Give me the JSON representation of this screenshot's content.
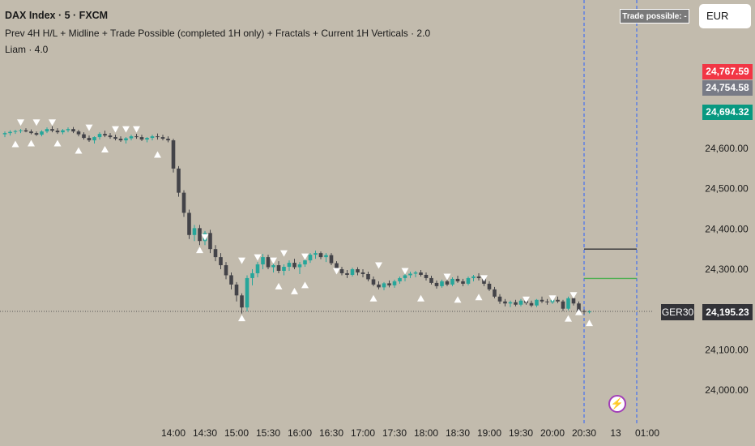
{
  "header": {
    "title": "DAX Index · 5 · FXCM",
    "indicator_1": "Prev 4H H/L + Midline + Trade Possible (completed 1H only) + Fractals + Current 1H Verticals · 2.0",
    "indicator_2": "Liam · 4.0"
  },
  "trade_badge": "Trade possible: -",
  "currency": "EUR",
  "price_tags": {
    "red": "24,767.59",
    "gray": "24,754.58",
    "green": "24,694.32",
    "last": "24,195.23",
    "symbol": "GER30"
  },
  "colors": {
    "bg": "#c2bbad",
    "up": "#26a69a",
    "down": "#434348",
    "red": "#f23645",
    "green": "#089981",
    "gray": "#787b86",
    "vline": "#2962ff"
  },
  "chart_data": {
    "type": "candlestick",
    "y_ticks": [
      24600,
      24500,
      24400,
      24300,
      24200,
      24100,
      24000
    ],
    "y_tick_labels": [
      "24,600.00",
      "24,500.00",
      "24,400.00",
      "24,300.00",
      "24,200.00",
      "24,100.00",
      "24,000.00"
    ],
    "x_tick_labels": [
      "14:00",
      "14:30",
      "15:00",
      "15:30",
      "16:00",
      "16:30",
      "17:00",
      "17:30",
      "18:00",
      "18:30",
      "19:00",
      "19:30",
      "20:00",
      "20:30",
      "13",
      "01:00"
    ],
    "x_range": [
      0,
      153
    ],
    "last_price": 24195.23,
    "candles": [
      [
        24635,
        24642,
        24628,
        24638
      ],
      [
        24638,
        24645,
        24632,
        24641
      ],
      [
        24641,
        24646,
        24636,
        24643
      ],
      [
        24643,
        24648,
        24638,
        24645
      ],
      [
        24645,
        24650,
        24640,
        24642
      ],
      [
        24642,
        24647,
        24635,
        24638
      ],
      [
        24638,
        24642,
        24631,
        24634
      ],
      [
        24634,
        24645,
        24630,
        24642
      ],
      [
        24642,
        24652,
        24638,
        24648
      ],
      [
        24648,
        24655,
        24640,
        24644
      ],
      [
        24644,
        24650,
        24636,
        24640
      ],
      [
        24640,
        24648,
        24635,
        24645
      ],
      [
        24645,
        24652,
        24640,
        24648
      ],
      [
        24648,
        24653,
        24638,
        24642
      ],
      [
        24642,
        24646,
        24630,
        24635
      ],
      [
        24635,
        24640,
        24622,
        24626
      ],
      [
        24626,
        24632,
        24616,
        24620
      ],
      [
        24620,
        24630,
        24612,
        24628
      ],
      [
        24628,
        24640,
        24622,
        24636
      ],
      [
        24636,
        24644,
        24628,
        24632
      ],
      [
        24632,
        24638,
        24624,
        24628
      ],
      [
        24628,
        24634,
        24620,
        24624
      ],
      [
        24624,
        24630,
        24616,
        24620
      ],
      [
        24620,
        24628,
        24612,
        24625
      ],
      [
        24625,
        24634,
        24620,
        24630
      ],
      [
        24630,
        24636,
        24624,
        24628
      ],
      [
        24628,
        24634,
        24618,
        24622
      ],
      [
        24622,
        24628,
        24615,
        24626
      ],
      [
        24626,
        24634,
        24620,
        24630
      ],
      [
        24630,
        24637,
        24622,
        24628
      ],
      [
        24628,
        24634,
        24620,
        24624
      ],
      [
        24624,
        24630,
        24615,
        24620
      ],
      [
        24620,
        24624,
        24540,
        24550
      ],
      [
        24550,
        24556,
        24480,
        24490
      ],
      [
        24490,
        24496,
        24430,
        24440
      ],
      [
        24440,
        24448,
        24375,
        24385
      ],
      [
        24385,
        24410,
        24370,
        24402
      ],
      [
        24402,
        24410,
        24360,
        24370
      ],
      [
        24370,
        24395,
        24360,
        24390
      ],
      [
        24390,
        24398,
        24340,
        24350
      ],
      [
        24350,
        24360,
        24320,
        24330
      ],
      [
        24330,
        24340,
        24300,
        24310
      ],
      [
        24310,
        24318,
        24275,
        24285
      ],
      [
        24285,
        24292,
        24250,
        24262
      ],
      [
        24262,
        24268,
        24220,
        24235
      ],
      [
        24235,
        24240,
        24190,
        24205
      ],
      [
        24205,
        24285,
        24195,
        24278
      ],
      [
        24278,
        24300,
        24260,
        24290
      ],
      [
        24290,
        24318,
        24280,
        24312
      ],
      [
        24312,
        24338,
        24300,
        24330
      ],
      [
        24330,
        24336,
        24300,
        24305
      ],
      [
        24305,
        24318,
        24292,
        24310
      ],
      [
        24310,
        24320,
        24290,
        24296
      ],
      [
        24296,
        24312,
        24285,
        24306
      ],
      [
        24306,
        24322,
        24296,
        24316
      ],
      [
        24316,
        24326,
        24300,
        24305
      ],
      [
        24305,
        24318,
        24288,
        24312
      ],
      [
        24312,
        24328,
        24306,
        24322
      ],
      [
        24322,
        24340,
        24316,
        24336
      ],
      [
        24336,
        24346,
        24326,
        24340
      ],
      [
        24340,
        24344,
        24325,
        24330
      ],
      [
        24330,
        24340,
        24318,
        24335
      ],
      [
        24335,
        24340,
        24310,
        24315
      ],
      [
        24315,
        24320,
        24295,
        24300
      ],
      [
        24300,
        24306,
        24285,
        24290
      ],
      [
        24290,
        24298,
        24278,
        24286
      ],
      [
        24286,
        24304,
        24282,
        24300
      ],
      [
        24300,
        24305,
        24285,
        24292
      ],
      [
        24292,
        24300,
        24280,
        24288
      ],
      [
        24288,
        24294,
        24270,
        24275
      ],
      [
        24275,
        24282,
        24258,
        24262
      ],
      [
        24262,
        24270,
        24250,
        24255
      ],
      [
        24255,
        24268,
        24248,
        24265
      ],
      [
        24265,
        24272,
        24255,
        24260
      ],
      [
        24260,
        24274,
        24254,
        24270
      ],
      [
        24270,
        24282,
        24264,
        24278
      ],
      [
        24278,
        24290,
        24270,
        24285
      ],
      [
        24285,
        24294,
        24278,
        24289
      ],
      [
        24289,
        24296,
        24280,
        24292
      ],
      [
        24292,
        24298,
        24282,
        24286
      ],
      [
        24286,
        24292,
        24272,
        24278
      ],
      [
        24278,
        24284,
        24262,
        24266
      ],
      [
        24266,
        24272,
        24252,
        24258
      ],
      [
        24258,
        24274,
        24254,
        24270
      ],
      [
        24270,
        24278,
        24258,
        24262
      ],
      [
        24262,
        24280,
        24258,
        24276
      ],
      [
        24276,
        24284,
        24266,
        24270
      ],
      [
        24270,
        24276,
        24258,
        24264
      ],
      [
        24264,
        24282,
        24260,
        24278
      ],
      [
        24278,
        24286,
        24270,
        24282
      ],
      [
        24282,
        24290,
        24272,
        24278
      ],
      [
        24278,
        24284,
        24258,
        24264
      ],
      [
        24264,
        24270,
        24246,
        24250
      ],
      [
        24250,
        24256,
        24228,
        24232
      ],
      [
        24232,
        24238,
        24214,
        24220
      ],
      [
        24220,
        24226,
        24208,
        24215
      ],
      [
        24215,
        24222,
        24206,
        24218
      ],
      [
        24218,
        24224,
        24208,
        24212
      ],
      [
        24212,
        24226,
        24208,
        24222
      ],
      [
        24222,
        24228,
        24212,
        24216
      ],
      [
        24216,
        24222,
        24206,
        24210
      ],
      [
        24210,
        24226,
        24206,
        24224
      ],
      [
        24224,
        24232,
        24216,
        24220
      ],
      [
        24220,
        24226,
        24212,
        24218
      ],
      [
        24218,
        24228,
        24214,
        24224
      ],
      [
        24224,
        24232,
        24216,
        24220
      ],
      [
        24220,
        24224,
        24196,
        24202
      ],
      [
        24202,
        24232,
        24198,
        24228
      ],
      [
        24228,
        24236,
        24210,
        24215
      ],
      [
        24215,
        24220,
        24190,
        24196
      ],
      [
        24196,
        24200,
        24188,
        24194
      ],
      [
        24194,
        24198,
        24190,
        24195
      ]
    ],
    "fractals_up": [
      [
        3,
        24665
      ],
      [
        6,
        24665
      ],
      [
        9,
        24665
      ],
      [
        16,
        24652
      ],
      [
        21,
        24648
      ],
      [
        23,
        24648
      ],
      [
        25,
        24648
      ],
      [
        38,
        24380
      ],
      [
        45,
        24322
      ],
      [
        48,
        24330
      ],
      [
        51,
        24322
      ],
      [
        53,
        24340
      ],
      [
        57,
        24332
      ],
      [
        63,
        24296
      ],
      [
        71,
        24310
      ],
      [
        76,
        24296
      ],
      [
        84,
        24282
      ],
      [
        91,
        24278
      ],
      [
        99,
        24225
      ],
      [
        104,
        24228
      ],
      [
        108,
        24236
      ]
    ],
    "fractals_down": [
      [
        2,
        24610
      ],
      [
        5,
        24612
      ],
      [
        10,
        24612
      ],
      [
        14,
        24594
      ],
      [
        19,
        24597
      ],
      [
        29,
        24584
      ],
      [
        37,
        24347
      ],
      [
        45,
        24178
      ],
      [
        52,
        24257
      ],
      [
        55,
        24245
      ],
      [
        57,
        24260
      ],
      [
        70,
        24227
      ],
      [
        79,
        24227
      ],
      [
        86,
        24224
      ],
      [
        90,
        24230
      ],
      [
        107,
        24177
      ],
      [
        109,
        24193
      ],
      [
        111,
        24166
      ]
    ],
    "h_lines": [
      {
        "name": "prev-4h-high",
        "x0": 110,
        "x1": 120,
        "y": 24350,
        "color": "#333338"
      },
      {
        "name": "midline",
        "x0": 110,
        "x1": 120,
        "y": 24277,
        "color": "#4caf50"
      }
    ],
    "v_lines": [
      110,
      120
    ]
  }
}
